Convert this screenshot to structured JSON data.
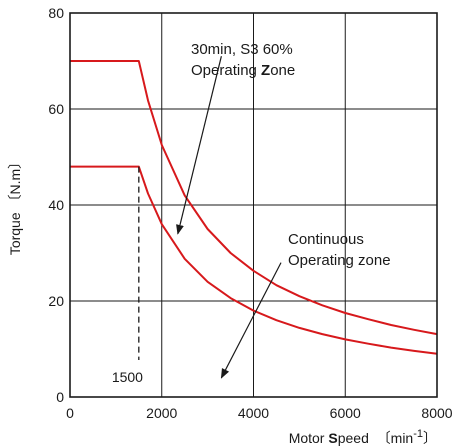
{
  "chart_data": {
    "type": "line",
    "title": "",
    "xlabel_parts": [
      "Motor ",
      "S",
      "peed  ",
      "〔min",
      "-1",
      "〕"
    ],
    "ylabel": "Torque 〔N.m〕",
    "xlim": [
      0,
      8000
    ],
    "ylim": [
      0,
      80
    ],
    "x_ticks": [
      0,
      2000,
      4000,
      6000,
      8000
    ],
    "y_ticks": [
      0,
      20,
      40,
      60,
      80
    ],
    "x_tick_labels": [
      "0",
      "2000",
      "4000",
      "6000",
      "8000"
    ],
    "y_tick_labels": [
      "0",
      "20",
      "40",
      "60",
      "80"
    ],
    "grid": true,
    "series": [
      {
        "color": "#d7191c",
        "x": [
          0,
          1500,
          1700,
          2000,
          2500,
          3000,
          3500,
          4000,
          4500,
          5000,
          5500,
          6000,
          6500,
          7000,
          7500,
          8000
        ],
        "y": [
          70,
          70,
          61.8,
          52.5,
          42,
          35,
          30,
          26.3,
          23.3,
          21,
          19.1,
          17.5,
          16.2,
          15,
          14,
          13.1
        ]
      },
      {
        "color": "#d7191c",
        "x": [
          0,
          1500,
          1700,
          2000,
          2500,
          3000,
          3500,
          4000,
          4500,
          5000,
          5500,
          6000,
          6500,
          7000,
          7500,
          8000
        ],
        "y": [
          48,
          48,
          42.4,
          36,
          28.8,
          24,
          20.6,
          18,
          16,
          14.4,
          13.1,
          12,
          11.1,
          10.3,
          9.6,
          9
        ]
      }
    ],
    "vline": {
      "x": 1500,
      "label": "1500",
      "style": "dashed"
    },
    "annotations": [
      {
        "lines": [
          [
            "30min, S3 60%"
          ],
          [
            "Operating ",
            "Z",
            "one"
          ]
        ],
        "bold_parts": [
          "Z"
        ],
        "arrow_from": [
          3300,
          71
        ],
        "arrow_to": [
          2350,
          34
        ]
      },
      {
        "lines": [
          [
            "Continuous"
          ],
          [
            "Operating zone"
          ]
        ],
        "arrow_from": [
          4600,
          28
        ],
        "arrow_to": [
          3300,
          4
        ]
      }
    ]
  }
}
